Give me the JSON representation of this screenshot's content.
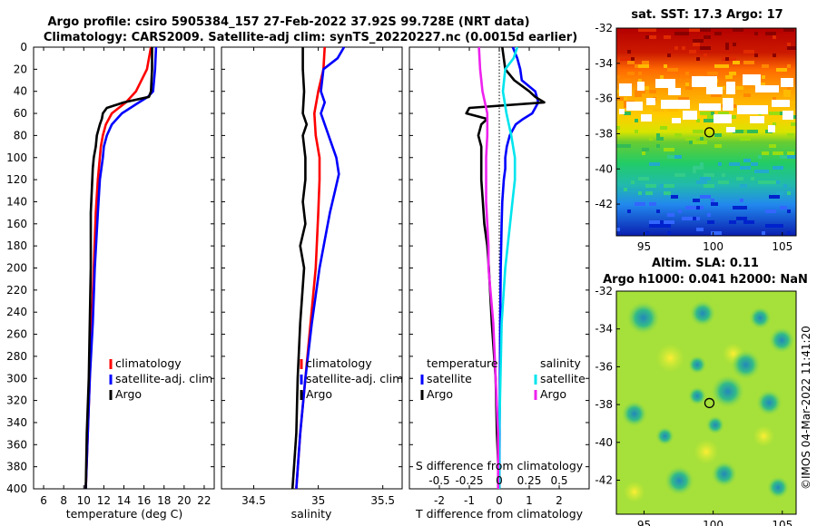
{
  "title": {
    "line1": "Argo profile: csiro 5905384_157 27-Feb-2022 37.92S 99.728E (NRT data)",
    "line2": "Climatology: CARS2009. Satellite-adj clim: synTS_20220227.nc (0.0015d earlier)"
  },
  "footer": "©IMOS 04-Mar-2022 11:41:20",
  "depth_ticks": [
    "0",
    "20",
    "40",
    "60",
    "80",
    "100",
    "120",
    "140",
    "160",
    "180",
    "200",
    "220",
    "240",
    "260",
    "280",
    "300",
    "320",
    "340",
    "360",
    "380",
    "400"
  ],
  "colors": {
    "climatology": "#ff0000",
    "satellite": "#0000ff",
    "argo": "#000000",
    "salinity_satellite": "#00e5ee",
    "salinity_argo": "#ee22ee"
  },
  "chart_data": [
    {
      "type": "line",
      "name": "temperature",
      "xlabel": "temperature (deg C)",
      "xlim": [
        5,
        23
      ],
      "ylim": [
        0,
        400
      ],
      "xticks": [
        "6",
        "8",
        "10",
        "12",
        "14",
        "16",
        "18",
        "20",
        "22"
      ],
      "legend": [
        "climatology",
        "satellite-adj. clim",
        "Argo"
      ],
      "series": [
        {
          "name": "climatology",
          "depth": [
            0,
            20,
            40,
            50,
            60,
            70,
            80,
            90,
            100,
            120,
            150,
            200,
            250,
            300,
            350,
            400
          ],
          "values": [
            16.7,
            16.3,
            15.2,
            14.2,
            12.8,
            12.2,
            11.9,
            11.7,
            11.6,
            11.4,
            11.2,
            11.0,
            10.8,
            10.6,
            10.4,
            10.2
          ]
        },
        {
          "name": "satellite-adj. clim",
          "depth": [
            0,
            20,
            40,
            45,
            50,
            60,
            70,
            80,
            90,
            100,
            120,
            150,
            200,
            250,
            300,
            350,
            400
          ],
          "values": [
            17.2,
            17.1,
            16.9,
            16.4,
            15.5,
            13.8,
            12.8,
            12.3,
            12.0,
            11.9,
            11.6,
            11.4,
            11.1,
            10.9,
            10.6,
            10.4,
            10.2
          ]
        },
        {
          "name": "Argo",
          "depth": [
            0,
            20,
            40,
            45,
            50,
            55,
            60,
            65,
            70,
            80,
            90,
            100,
            110,
            130,
            150,
            180,
            200,
            250,
            300,
            350,
            400
          ],
          "values": [
            16.8,
            16.8,
            16.7,
            16.5,
            14.0,
            12.3,
            11.9,
            11.8,
            11.6,
            11.3,
            11.2,
            11.0,
            10.9,
            10.8,
            10.7,
            10.7,
            10.7,
            10.6,
            10.5,
            10.3,
            10.2
          ]
        }
      ]
    },
    {
      "type": "line",
      "name": "salinity",
      "xlabel": "salinity",
      "xlim": [
        34.25,
        35.65
      ],
      "ylim": [
        0,
        400
      ],
      "xticks": [
        "34.5",
        "35",
        "35.5"
      ],
      "legend": [
        "climatology",
        "satellite-adj. clim",
        "Argo"
      ],
      "series": [
        {
          "name": "climatology",
          "depth": [
            0,
            20,
            40,
            60,
            80,
            100,
            120,
            150,
            200,
            250,
            300,
            350,
            400
          ],
          "values": [
            35.05,
            35.04,
            35.0,
            34.97,
            34.98,
            35.01,
            35.01,
            35.0,
            34.98,
            34.94,
            34.9,
            34.86,
            34.83
          ]
        },
        {
          "name": "satellite-adj. clim",
          "depth": [
            0,
            10,
            20,
            40,
            50,
            60,
            80,
            100,
            115,
            130,
            150,
            200,
            250,
            300,
            350,
            400
          ],
          "values": [
            35.2,
            35.15,
            35.04,
            35.02,
            35.05,
            35.02,
            35.08,
            35.14,
            35.16,
            35.13,
            35.09,
            35.01,
            34.95,
            34.9,
            34.86,
            34.83
          ]
        },
        {
          "name": "Argo",
          "depth": [
            0,
            20,
            40,
            60,
            70,
            80,
            100,
            120,
            140,
            160,
            180,
            200,
            250,
            300,
            350,
            400
          ],
          "values": [
            34.88,
            34.88,
            34.89,
            34.88,
            34.91,
            34.88,
            34.9,
            34.9,
            34.88,
            34.9,
            34.86,
            34.89,
            34.86,
            34.84,
            34.83,
            34.8
          ]
        }
      ]
    },
    {
      "type": "line",
      "name": "difference",
      "xlabel": "T difference from climatology",
      "xlabel_top": "S difference from climatology",
      "xlim": [
        -3,
        3
      ],
      "ylim": [
        0,
        400
      ],
      "xticks": [
        "-2",
        "-1",
        "0",
        "1",
        "2"
      ],
      "xticks_top": [
        "-0.5",
        "-0.25",
        "0",
        "0.25",
        "0.5"
      ],
      "legend_temperature_title": "temperature",
      "legend_salinity_title": "salinity",
      "legend_temperature": [
        "satellite",
        "Argo"
      ],
      "legend_salinity": [
        "satellite",
        "Argo"
      ],
      "series": [
        {
          "name": "T satellite",
          "depth": [
            0,
            10,
            20,
            30,
            40,
            45,
            50,
            55,
            60,
            65,
            70,
            80,
            90,
            100,
            110,
            120,
            140,
            160,
            200,
            250,
            300,
            350,
            400
          ],
          "values": [
            0.45,
            0.6,
            0.7,
            0.75,
            1.2,
            1.25,
            1.3,
            1.2,
            1.1,
            0.8,
            0.55,
            0.35,
            0.25,
            0.2,
            0.2,
            0.15,
            0.1,
            0.08,
            0.05,
            0.03,
            0.02,
            0.01,
            0.0
          ]
        },
        {
          "name": "T Argo",
          "depth": [
            0,
            20,
            30,
            40,
            45,
            50,
            55,
            60,
            65,
            70,
            80,
            90,
            100,
            120,
            140,
            160,
            180,
            200,
            250,
            300,
            350,
            400
          ],
          "values": [
            0.1,
            0.2,
            0.5,
            1.0,
            1.2,
            1.5,
            -1.0,
            -1.1,
            -0.4,
            -0.6,
            -0.7,
            -0.6,
            -0.6,
            -0.6,
            -0.55,
            -0.5,
            -0.4,
            -0.35,
            -0.25,
            -0.12,
            -0.08,
            0.0
          ]
        },
        {
          "name": "S satellite",
          "depth": [
            0,
            10,
            20,
            40,
            60,
            80,
            100,
            120,
            140,
            160,
            200,
            250,
            300,
            350,
            400
          ],
          "values": [
            0.15,
            0.12,
            0.05,
            0.03,
            0.06,
            0.1,
            0.13,
            0.13,
            0.11,
            0.09,
            0.05,
            0.02,
            0.01,
            0.0,
            0.0
          ]
        },
        {
          "name": "S Argo",
          "depth": [
            0,
            20,
            40,
            60,
            80,
            100,
            120,
            140,
            160,
            180,
            200,
            250,
            300,
            350,
            400
          ],
          "values": [
            -0.17,
            -0.16,
            -0.14,
            -0.1,
            -0.1,
            -0.11,
            -0.11,
            -0.11,
            -0.1,
            -0.09,
            -0.09,
            -0.05,
            -0.03,
            -0.01,
            -0.01
          ]
        }
      ]
    },
    {
      "type": "heatmap",
      "name": "sst_map",
      "title": "sat. SST: 17.3 Argo: 17",
      "xlim": [
        93,
        106
      ],
      "ylim": [
        -43.8,
        -32
      ],
      "xticks": [
        "95",
        "100",
        "105"
      ],
      "yticks": [
        "-32",
        "-34",
        "-36",
        "-38",
        "-40",
        "-42"
      ],
      "marker": {
        "lon": 99.728,
        "lat": -37.92
      }
    },
    {
      "type": "heatmap",
      "name": "sla_map",
      "title": "Altim. SLA: 0.11",
      "subtitle": "Argo h1000: 0.041 h2000: NaN",
      "xlim": [
        93,
        106
      ],
      "ylim": [
        -43.8,
        -32
      ],
      "xticks": [
        "95",
        "100",
        "105"
      ],
      "yticks": [
        "-32",
        "-34",
        "-36",
        "-38",
        "-40",
        "-42"
      ],
      "marker": {
        "lon": 99.728,
        "lat": -37.92
      }
    }
  ]
}
